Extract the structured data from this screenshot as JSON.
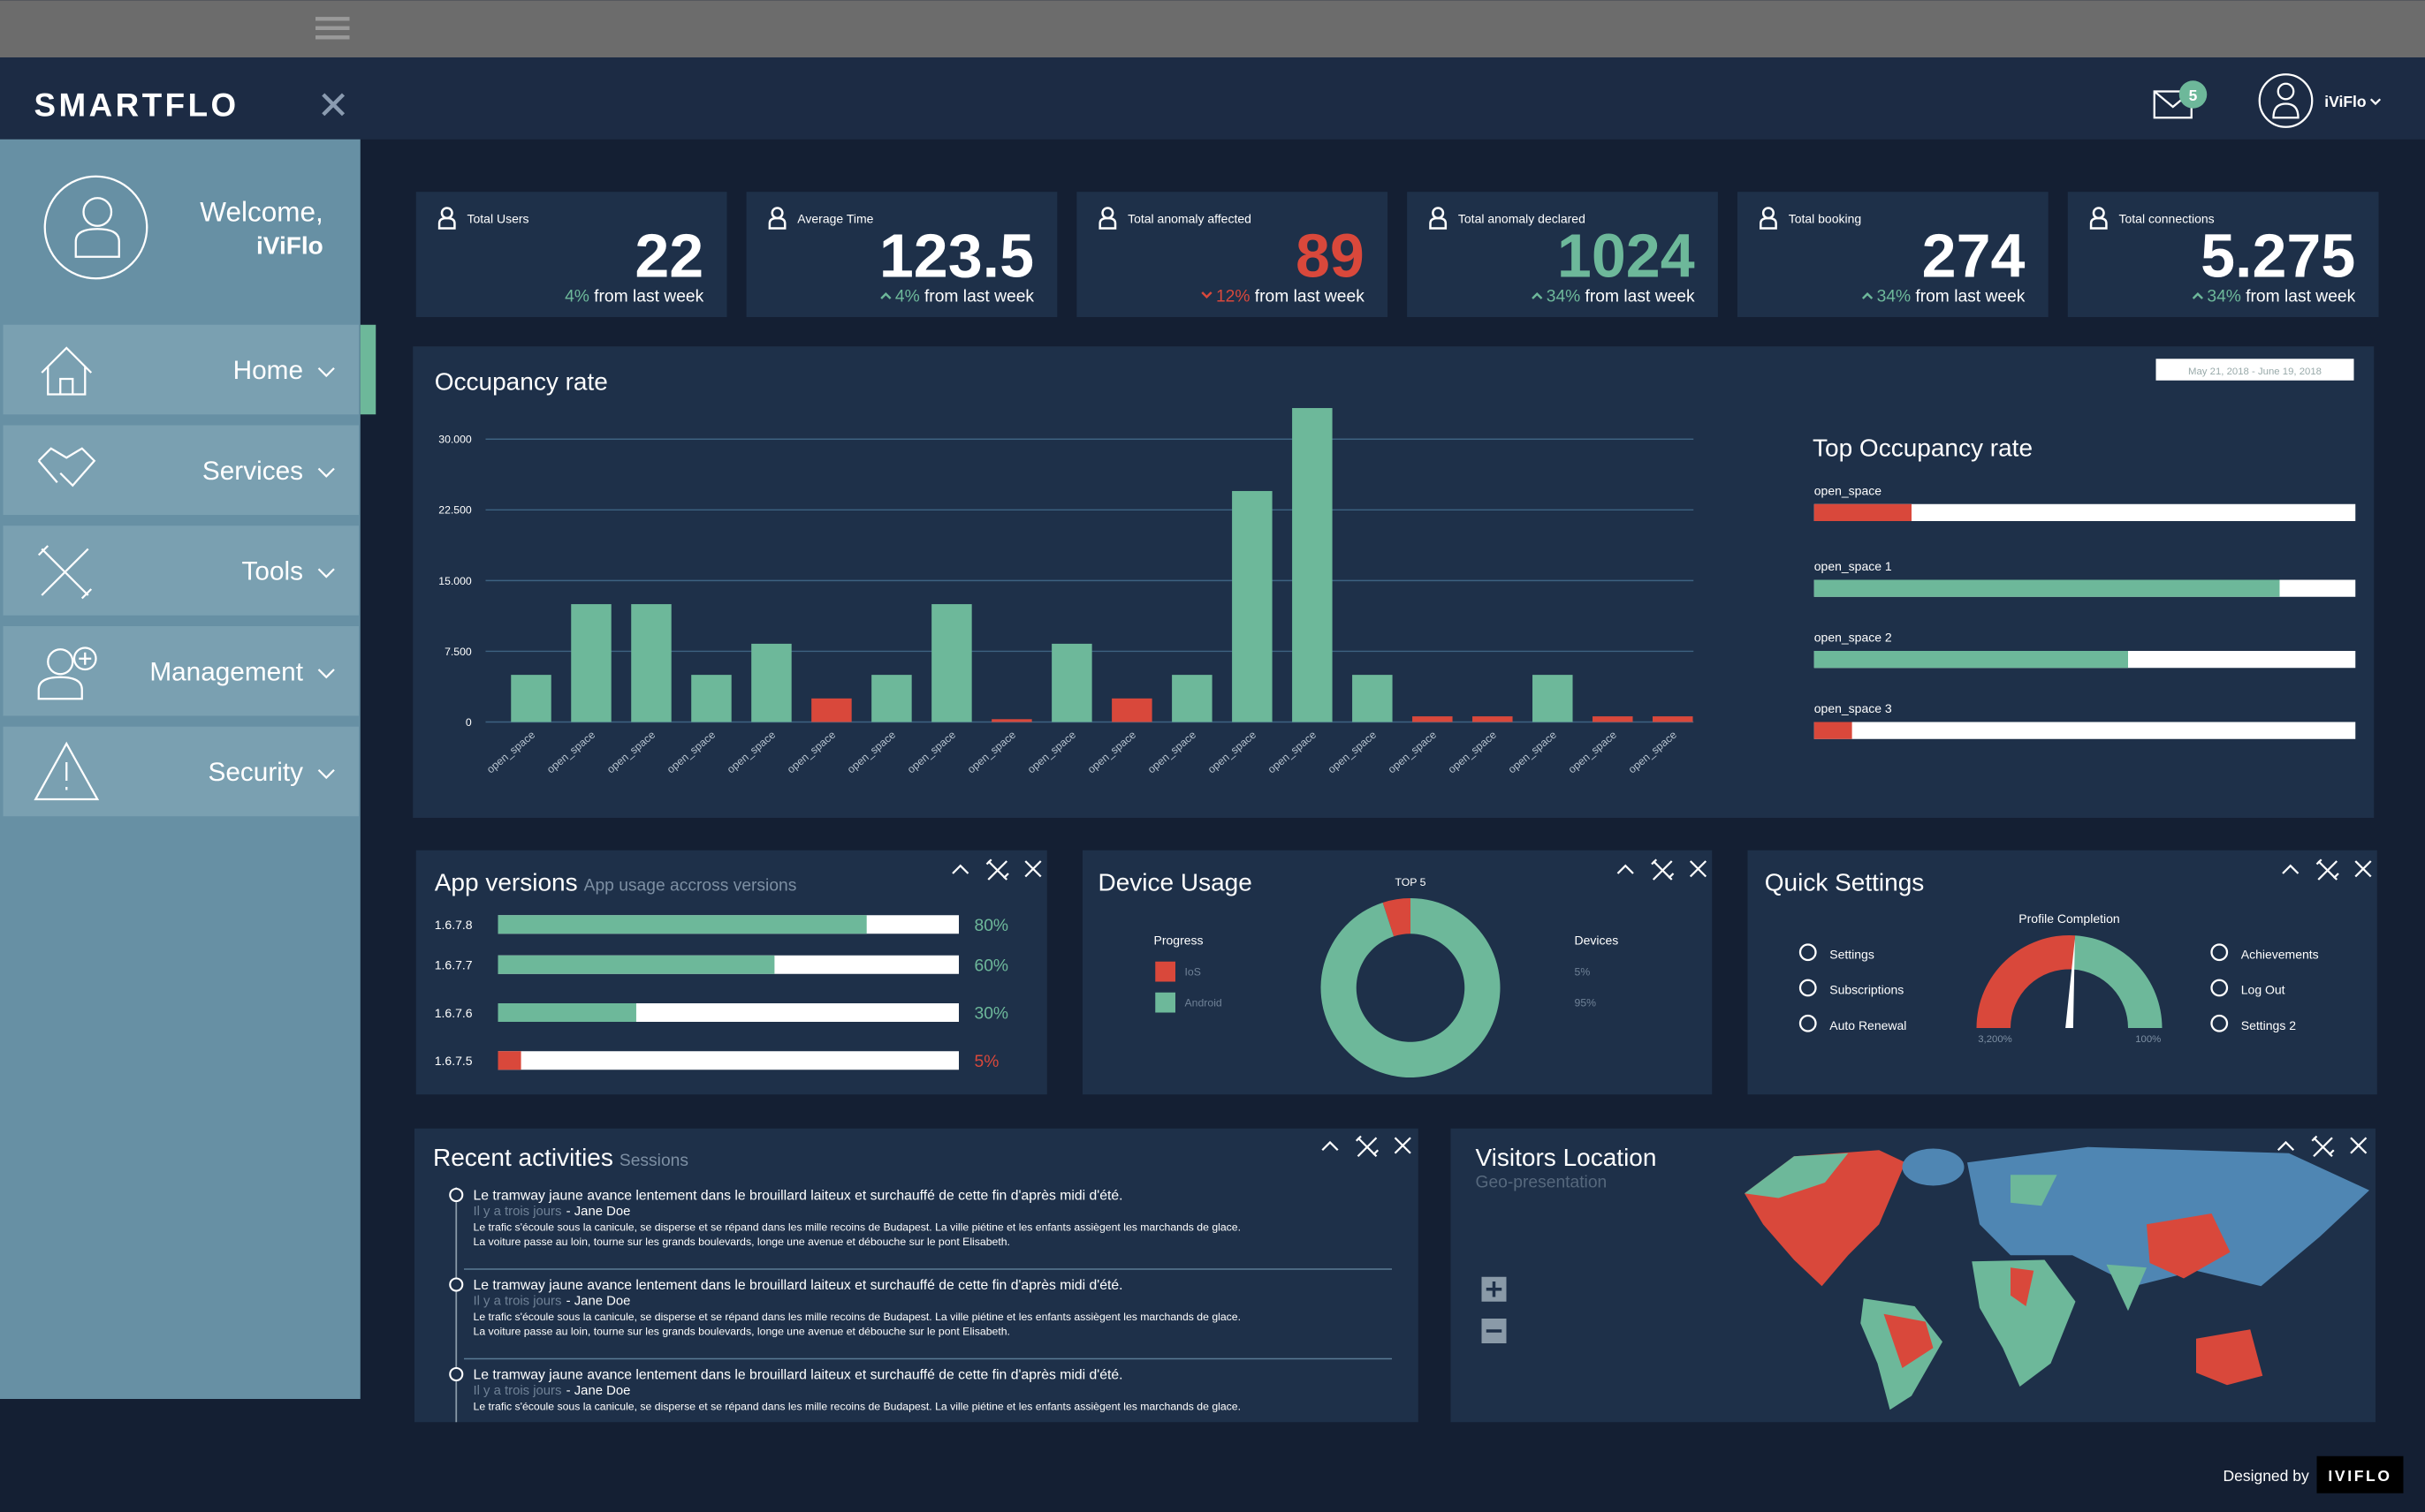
{
  "header": {
    "logo": "SMARTFLO",
    "messages": 5,
    "user": "iViFlo"
  },
  "sidebar": {
    "welcome": "Welcome,",
    "user": "iViFlo",
    "menu": [
      "Home",
      "Services",
      "Tools",
      "Management",
      "Security"
    ]
  },
  "stats": [
    {
      "label": "Total Users",
      "value": 22,
      "color": "#ffffff",
      "change": "4%",
      "change_color": "#6db89a",
      "suffix": "from last week"
    },
    {
      "label": "Average Time",
      "value": 123.5,
      "color": "#ffffff",
      "change": "4%",
      "change_color": "#6db89a",
      "suffix": "from last week",
      "trend": "up"
    },
    {
      "label": "Total anomaly affected",
      "value": 89,
      "color": "#d9483b",
      "change": "12%",
      "change_color": "#d9483b",
      "suffix": "from last week",
      "trend": "down"
    },
    {
      "label": "Total anomaly declared",
      "value": 1024,
      "color": "#6db89a",
      "change": "34%",
      "change_color": "#6db89a",
      "suffix": "from last week",
      "trend": "up"
    },
    {
      "label": "Total booking",
      "value": 274,
      "color": "#ffffff",
      "change": "34%",
      "change_color": "#6db89a",
      "suffix": "from last week",
      "trend": "up"
    },
    {
      "label": "Total connections",
      "value": 5.275,
      "color": "#ffffff",
      "change": "34%",
      "change_color": "#6db89a",
      "suffix": "from last week",
      "trend": "up"
    }
  ],
  "chart_data": {
    "type": "bar",
    "title": "Occupancy rate",
    "date_range": "May 21, 2018 - June 19, 2018",
    "categories": [
      "open_space",
      "open_space",
      "open_space",
      "open_space",
      "open_space",
      "open_space",
      "open_space",
      "open_space",
      "open_space",
      "open_space",
      "open_space",
      "open_space",
      "open_space",
      "open_space",
      "open_space",
      "open_space",
      "open_space",
      "open_space",
      "open_space",
      "open_space"
    ],
    "values": [
      5000,
      12500,
      12500,
      5000,
      8300,
      2500,
      5000,
      12500,
      300,
      8300,
      2500,
      5000,
      24500,
      33300,
      5000,
      600,
      600,
      5000,
      600,
      600
    ],
    "colors": [
      "#6db89a",
      "#6db89a",
      "#6db89a",
      "#6db89a",
      "#6db89a",
      "#d9483b",
      "#6db89a",
      "#6db89a",
      "#d9483b",
      "#6db89a",
      "#d9483b",
      "#6db89a",
      "#6db89a",
      "#6db89a",
      "#6db89a",
      "#d9483b",
      "#d9483b",
      "#6db89a",
      "#d9483b",
      "#d9483b"
    ],
    "ylim": [
      0,
      35000
    ],
    "yticks": [
      0,
      {
        "value": 7500,
        "label": "7.500"
      },
      {
        "value": 15000,
        "label": "15.000"
      },
      {
        "value": 22500,
        "label": "22.500"
      },
      {
        "value": 30000,
        "label": "30.000"
      }
    ],
    "grid": true
  },
  "top_occupancy": {
    "title": "Top Occupancy rate",
    "items": [
      {
        "name": "open_space",
        "value": 18,
        "color": "#d9483b"
      },
      {
        "name": "open_space 1",
        "value": 86,
        "color": "#6db89a"
      },
      {
        "name": "open_space 2",
        "value": 58,
        "color": "#6db89a"
      },
      {
        "name": "open_space 3",
        "value": 7,
        "color": "#d9483b"
      }
    ]
  },
  "app_versions": {
    "title": "App versions",
    "subtitle": "App usage accross versions",
    "rows": [
      {
        "version": "1.6.7.8",
        "value": 80,
        "value_label": "80%",
        "color": "#6db89a"
      },
      {
        "version": "1.6.7.7",
        "value": 60,
        "value_label": "60%",
        "color": "#6db89a"
      },
      {
        "version": "1.6.7.6",
        "value": 30,
        "value_label": "30%",
        "color": "#6db89a"
      },
      {
        "version": "1.6.7.5",
        "value": 5,
        "value_label": "5%",
        "color": "#d9483b"
      }
    ]
  },
  "device_usage": {
    "title": "Device Usage",
    "top": "TOP 5",
    "legend_title": "Progress",
    "devices_title": "Devices",
    "series": [
      {
        "name": "IoS",
        "color": "#d9483b",
        "value": 5,
        "value_label": "5%"
      },
      {
        "name": "Android",
        "color": "#6db89a",
        "value": 95,
        "value_label": "95%"
      }
    ]
  },
  "quick_settings": {
    "title": "Quick Settings",
    "gauge_title": "Profile Completion",
    "gauge": {
      "value": 52,
      "min_label": "3,200%",
      "max_label": "100%"
    },
    "left": [
      "Settings",
      "Subscriptions",
      "Auto Renewal"
    ],
    "right": [
      "Achievements",
      "Log Out",
      "Settings 2"
    ]
  },
  "recent": {
    "title": "Recent activities",
    "subtitle": "Sessions",
    "items": [
      {
        "headline": "Le tramway jaune avance lentement dans le brouillard laiteux et surchauffé de cette fin d'après midi d'été.",
        "time": "Il y a trois jours",
        "author": "- Jane Doe",
        "body": [
          "Le trafic s'écoule sous la canicule, se disperse et se répand dans les mille recoins de Budapest. La ville piétine et les enfants assiègent les marchands de glace.",
          "La voiture passe au loin, tourne sur les grands boulevards, longe une avenue et débouche sur le pont Elisabeth."
        ]
      },
      {
        "headline": "Le tramway jaune avance lentement dans le brouillard laiteux et surchauffé de cette fin d'après midi d'été.",
        "time": "Il y a trois jours",
        "author": "- Jane Doe",
        "body": [
          "Le trafic s'écoule sous la canicule, se disperse et se répand dans les mille recoins de Budapest. La ville piétine et les enfants assiègent les marchands de glace.",
          "La voiture passe au loin, tourne sur les grands boulevards, longe une avenue et débouche sur le pont Elisabeth."
        ]
      },
      {
        "headline": "Le tramway jaune avance lentement dans le brouillard laiteux et surchauffé de cette fin d'après midi d'été.",
        "time": "Il y a trois jours",
        "author": "- Jane Doe",
        "body": [
          "Le trafic s'écoule sous la canicule, se disperse et se répand dans les mille recoins de Budapest. La ville piétine et les enfants assiègent les marchands de glace."
        ]
      }
    ]
  },
  "visitors": {
    "title": "Visitors Location",
    "subtitle": "Geo-presentation"
  },
  "footer": {
    "designed_by": "Designed by",
    "brand": "IVIFLO"
  }
}
